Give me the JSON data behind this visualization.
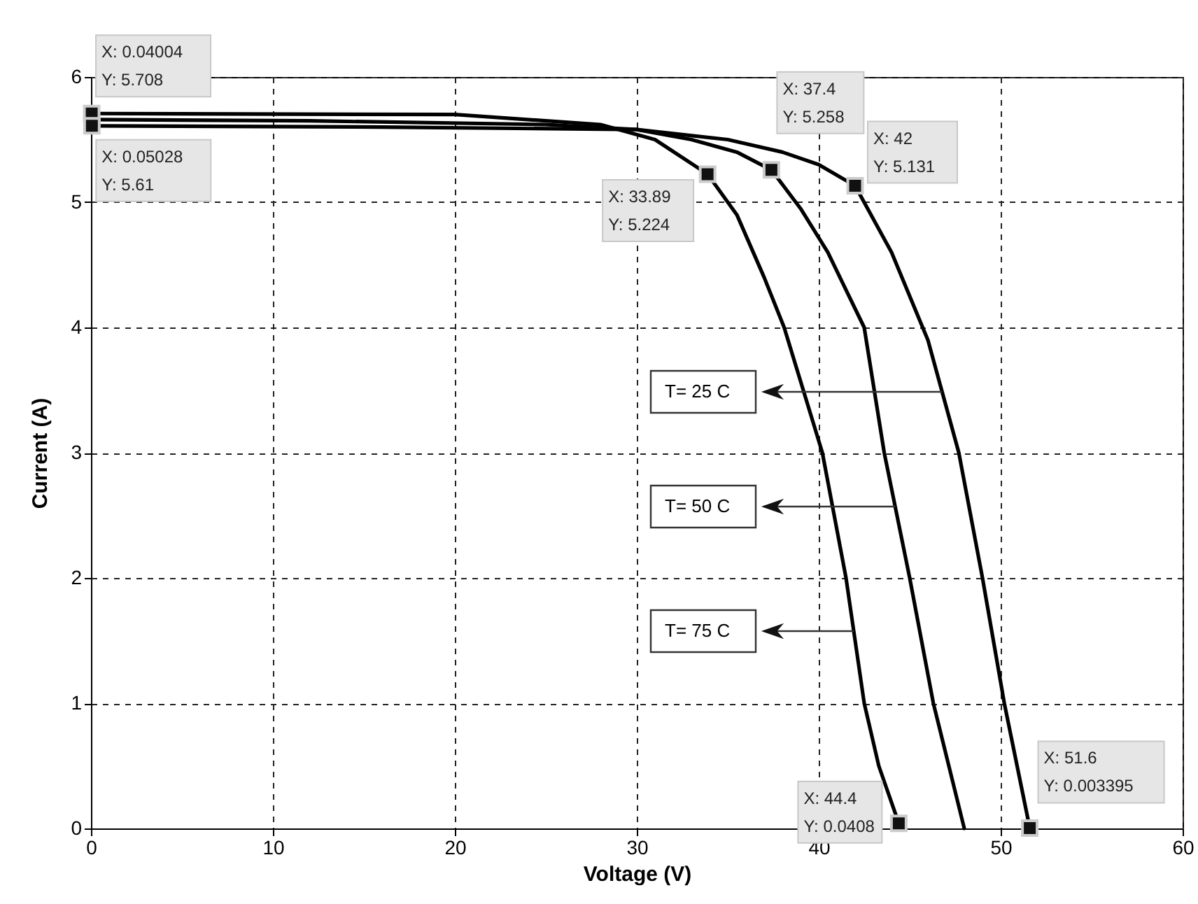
{
  "chart_data": {
    "type": "line",
    "xlabel": "Voltage (V)",
    "ylabel": "Current (A)",
    "xlim": [
      0,
      60
    ],
    "ylim": [
      0,
      6
    ],
    "xticks": [
      0,
      10,
      20,
      30,
      40,
      50,
      60
    ],
    "yticks": [
      0,
      1,
      2,
      3,
      4,
      5,
      6
    ],
    "grid": true,
    "line_style": "solid",
    "marker": "none",
    "series": [
      {
        "color": "#000000",
        "x": [
          0,
          16,
          30,
          35,
          38,
          40,
          42,
          44,
          46,
          47.7,
          49,
          50.2,
          51.6
        ],
        "values": [
          5.61,
          5.6,
          5.58,
          5.5,
          5.4,
          5.3,
          5.131,
          4.6,
          3.9,
          3.0,
          2.0,
          1.0,
          0.003395
        ]
      },
      {
        "color": "#000000",
        "x": [
          0,
          12,
          25,
          30,
          33,
          35.5,
          37.4,
          39,
          40.5,
          41.5,
          42.5,
          43.6,
          45,
          46.3,
          48
        ],
        "values": [
          5.66,
          5.65,
          5.62,
          5.58,
          5.5,
          5.4,
          5.258,
          4.95,
          4.6,
          4.3,
          4.0,
          3.0,
          2.0,
          1.0,
          0
        ]
      },
      {
        "color": "#000000",
        "x": [
          0,
          20,
          28,
          31,
          33.89,
          35.5,
          37,
          38.1,
          40.2,
          41.5,
          42.5,
          43.3,
          44.4
        ],
        "values": [
          5.708,
          5.7,
          5.62,
          5.5,
          5.224,
          4.9,
          4.4,
          4.0,
          3.0,
          2.0,
          1.0,
          0.5,
          0.0408
        ]
      }
    ],
    "annotations": [
      {
        "text": "X: 0.04004\nY: 5.708",
        "x": 0.04004,
        "y": 5.708
      },
      {
        "text": "X: 0.05028\nY: 5.61",
        "x": 0.05028,
        "y": 5.61
      },
      {
        "text": "X: 33.89\nY: 5.224",
        "x": 33.89,
        "y": 5.224
      },
      {
        "text": "X: 37.4\nY: 5.258",
        "x": 37.4,
        "y": 5.258
      },
      {
        "text": "X: 42\nY: 5.131",
        "x": 42,
        "y": 5.131
      },
      {
        "text": "X: 44.4\nY: 0.0408",
        "x": 44.4,
        "y": 0.0408
      },
      {
        "text": "X: 51.6\nY: 0.003395",
        "x": 51.6,
        "y": 0.003395
      },
      "T= 25 C",
      "T= 50 C",
      "T= 75 C"
    ]
  }
}
